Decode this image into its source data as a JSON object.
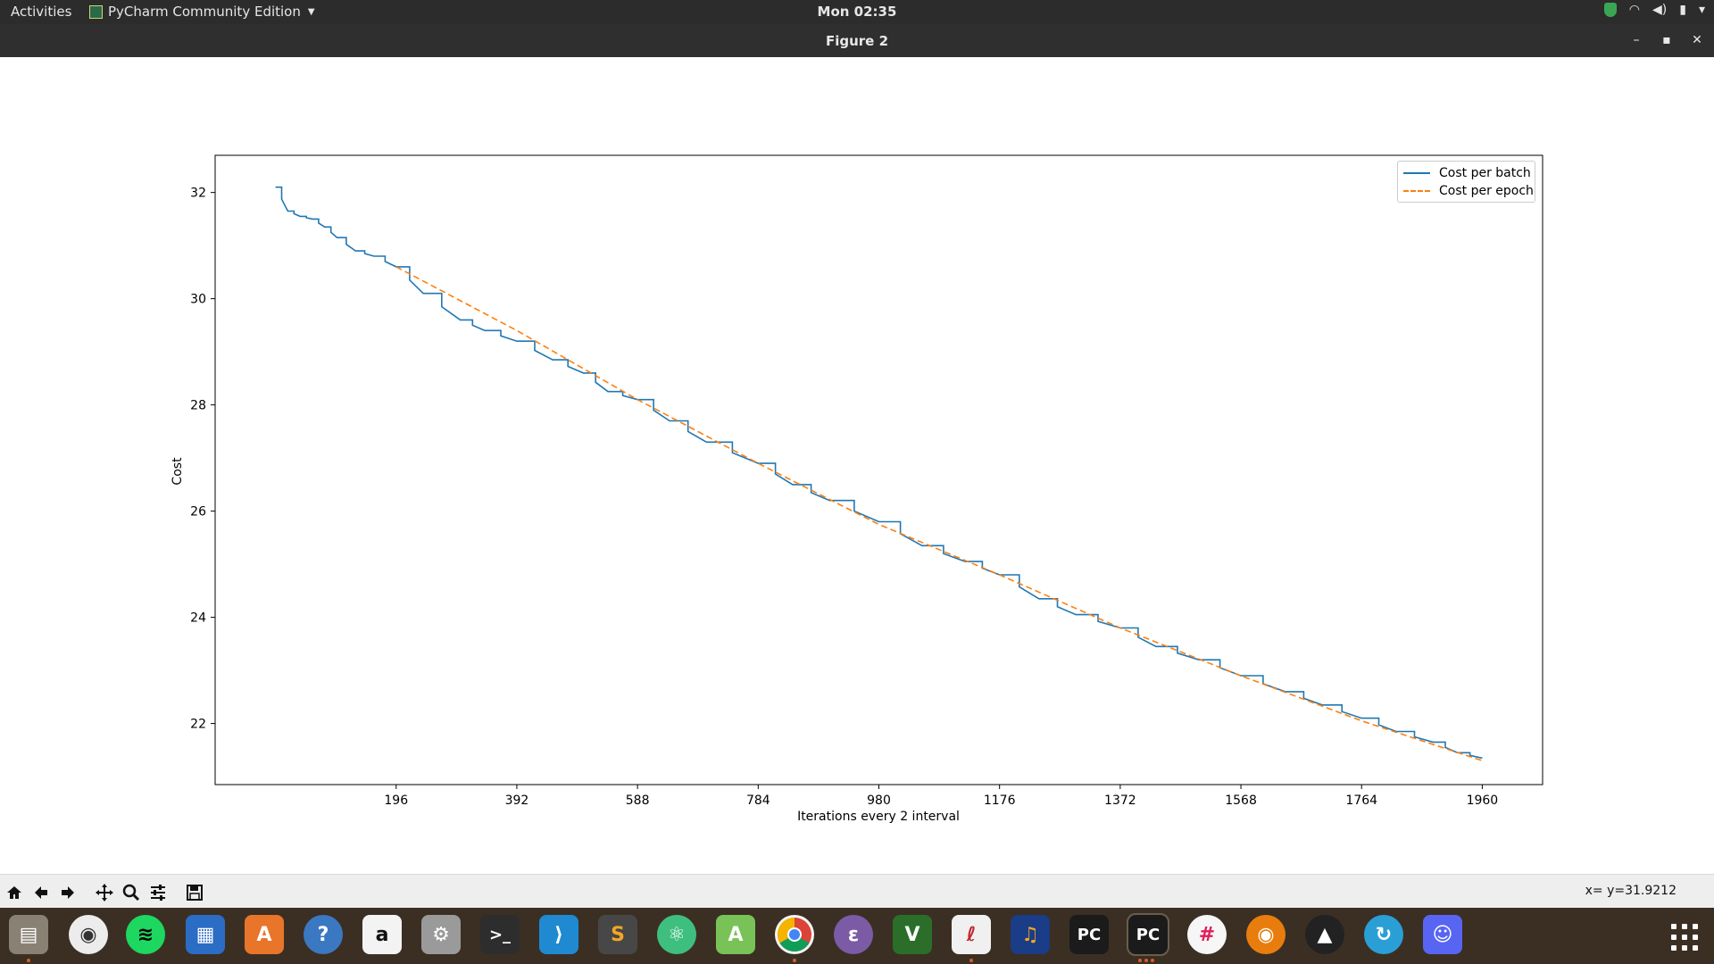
{
  "topbar": {
    "activities": "Activities",
    "app_name": "PyCharm Community Edition",
    "clock": "Mon 02:35"
  },
  "window": {
    "title": "Figure 2"
  },
  "chart_data": {
    "type": "line",
    "xlabel": "Iterations every 2 interval",
    "ylabel": "Cost",
    "xlim": [
      -98,
      2058
    ],
    "ylim": [
      20.85,
      32.7
    ],
    "xticks": [
      196,
      392,
      588,
      784,
      980,
      1176,
      1372,
      1568,
      1764,
      1960
    ],
    "yticks": [
      22,
      24,
      26,
      28,
      30,
      32
    ],
    "legend_position": "top-right",
    "series": [
      {
        "name": "Cost per batch",
        "style": "solid",
        "color": "#1f77b4",
        "x": [
          0,
          20,
          40,
          60,
          80,
          100,
          130,
          160,
          196,
          240,
          300,
          340,
          392,
          450,
          500,
          540,
          588,
          640,
          700,
          784,
          840,
          900,
          980,
          1050,
          1120,
          1176,
          1240,
          1300,
          1372,
          1430,
          1500,
          1568,
          1640,
          1700,
          1764,
          1820,
          1880,
          1920,
          1960
        ],
        "y": [
          32.1,
          31.65,
          31.55,
          31.5,
          31.35,
          31.15,
          30.9,
          30.8,
          30.6,
          30.1,
          29.6,
          29.4,
          29.2,
          28.85,
          28.6,
          28.25,
          28.1,
          27.7,
          27.3,
          26.9,
          26.5,
          26.2,
          25.8,
          25.35,
          25.05,
          24.8,
          24.35,
          24.05,
          23.8,
          23.45,
          23.2,
          22.9,
          22.6,
          22.35,
          22.1,
          21.85,
          21.65,
          21.45,
          21.35
        ]
      },
      {
        "name": "Cost per epoch",
        "style": "dashed",
        "color": "#ff7f0e",
        "x": [
          196,
          392,
          588,
          784,
          980,
          1176,
          1372,
          1568,
          1764,
          1960
        ],
        "y": [
          30.6,
          29.4,
          28.1,
          26.9,
          25.75,
          24.8,
          23.8,
          22.9,
          22.05,
          21.3
        ]
      }
    ]
  },
  "toolbar": {
    "home_icon": "home-icon",
    "back_icon": "arrow-left-icon",
    "forward_icon": "arrow-right-icon",
    "pan_icon": "move-icon",
    "zoom_icon": "magnifier-icon",
    "configure_icon": "sliders-icon",
    "save_icon": "save-icon",
    "coords": "x= y=31.9212"
  }
}
